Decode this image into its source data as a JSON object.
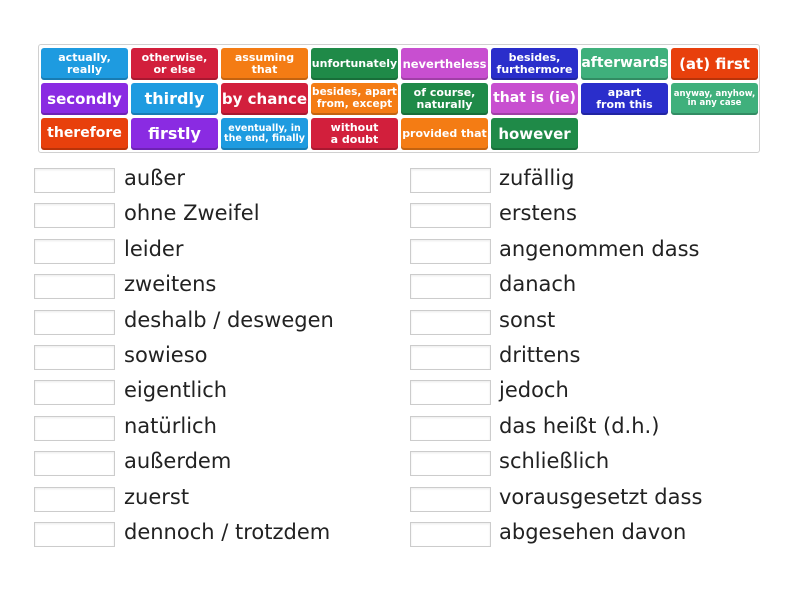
{
  "colors": {
    "blue": "#1e9be0",
    "red": "#d21f3c",
    "orange": "#f47c14",
    "green": "#1f8a48",
    "magenta": "#c84fd0",
    "navy": "#2a2ecb",
    "teal": "#3fb07c",
    "redorange": "#e8400c",
    "purple": "#8a2be2"
  },
  "tiles": [
    {
      "text": "actually,\nreally",
      "color": "blue",
      "fs": 11
    },
    {
      "text": "otherwise,\nor else",
      "color": "red",
      "fs": 11
    },
    {
      "text": "assuming\nthat",
      "color": "orange",
      "fs": 11
    },
    {
      "text": "unfortunately",
      "color": "green",
      "fs": 11
    },
    {
      "text": "nevertheless",
      "color": "magenta",
      "fs": 11.5
    },
    {
      "text": "besides,\nfurthermore",
      "color": "navy",
      "fs": 11
    },
    {
      "text": "afterwards",
      "color": "teal",
      "fs": 14
    },
    {
      "text": "(at) first",
      "color": "redorange",
      "fs": 15
    },
    {
      "text": "secondly",
      "color": "purple",
      "fs": 15
    },
    {
      "text": "thirdly",
      "color": "blue",
      "fs": 16
    },
    {
      "text": "by chance",
      "color": "red",
      "fs": 15
    },
    {
      "text": "besides, apart\nfrom, except",
      "color": "orange",
      "fs": 10.5
    },
    {
      "text": "of course,\nnaturally",
      "color": "green",
      "fs": 11
    },
    {
      "text": "that is (ie)",
      "color": "magenta",
      "fs": 14
    },
    {
      "text": "apart\nfrom this",
      "color": "navy",
      "fs": 11
    },
    {
      "text": "anyway, anyhow,\nin any case",
      "color": "teal",
      "fs": 8.5
    },
    {
      "text": "therefore",
      "color": "redorange",
      "fs": 14
    },
    {
      "text": "firstly",
      "color": "purple",
      "fs": 16
    },
    {
      "text": "eventually, in\nthe end, finally",
      "color": "blue",
      "fs": 9.5
    },
    {
      "text": "without\na doubt",
      "color": "red",
      "fs": 11
    },
    {
      "text": "provided that",
      "color": "orange",
      "fs": 11
    },
    {
      "text": "however",
      "color": "green",
      "fs": 15
    }
  ],
  "left": [
    "außer",
    "ohne Zweifel",
    "leider",
    "zweitens",
    "deshalb / deswegen",
    "sowieso",
    "eigentlich",
    "natürlich",
    "außerdem",
    "zuerst",
    "dennoch / trotzdem"
  ],
  "right": [
    "zufällig",
    "erstens",
    "angenommen dass",
    "danach",
    "sonst",
    "drittens",
    "jedoch",
    "das heißt (d.h.)",
    "schließlich",
    "vorausgesetzt dass",
    "abgesehen davon"
  ]
}
